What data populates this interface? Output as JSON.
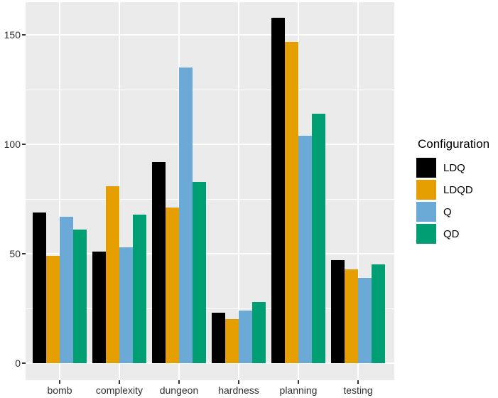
{
  "chart_data": {
    "type": "bar",
    "title": "",
    "categories": [
      "bomb",
      "complexity",
      "dungeon",
      "hardness",
      "planning",
      "testing"
    ],
    "series": [
      {
        "name": "LDQ",
        "color": "#000000",
        "values": [
          69,
          51,
          92,
          23,
          158,
          47
        ]
      },
      {
        "name": "LDQD",
        "color": "#E69F00",
        "values": [
          49,
          81,
          71,
          20,
          147,
          43
        ]
      },
      {
        "name": "Q",
        "color": "#6BAAD6",
        "values": [
          67,
          53,
          135,
          24,
          104,
          39
        ]
      },
      {
        "name": "QD",
        "color": "#009E73",
        "values": [
          61,
          68,
          83,
          28,
          114,
          45
        ]
      }
    ],
    "xlabel": "",
    "ylabel": "",
    "ylim": [
      0,
      165
    ],
    "yticks": [
      0,
      50,
      100,
      150
    ],
    "yticks_minor": [
      25,
      75,
      125
    ],
    "grid": true,
    "legend_title": "Configuration",
    "legend_position": "right",
    "panel_background": "#EBEBEB",
    "grid_color": "#FFFFFF"
  }
}
